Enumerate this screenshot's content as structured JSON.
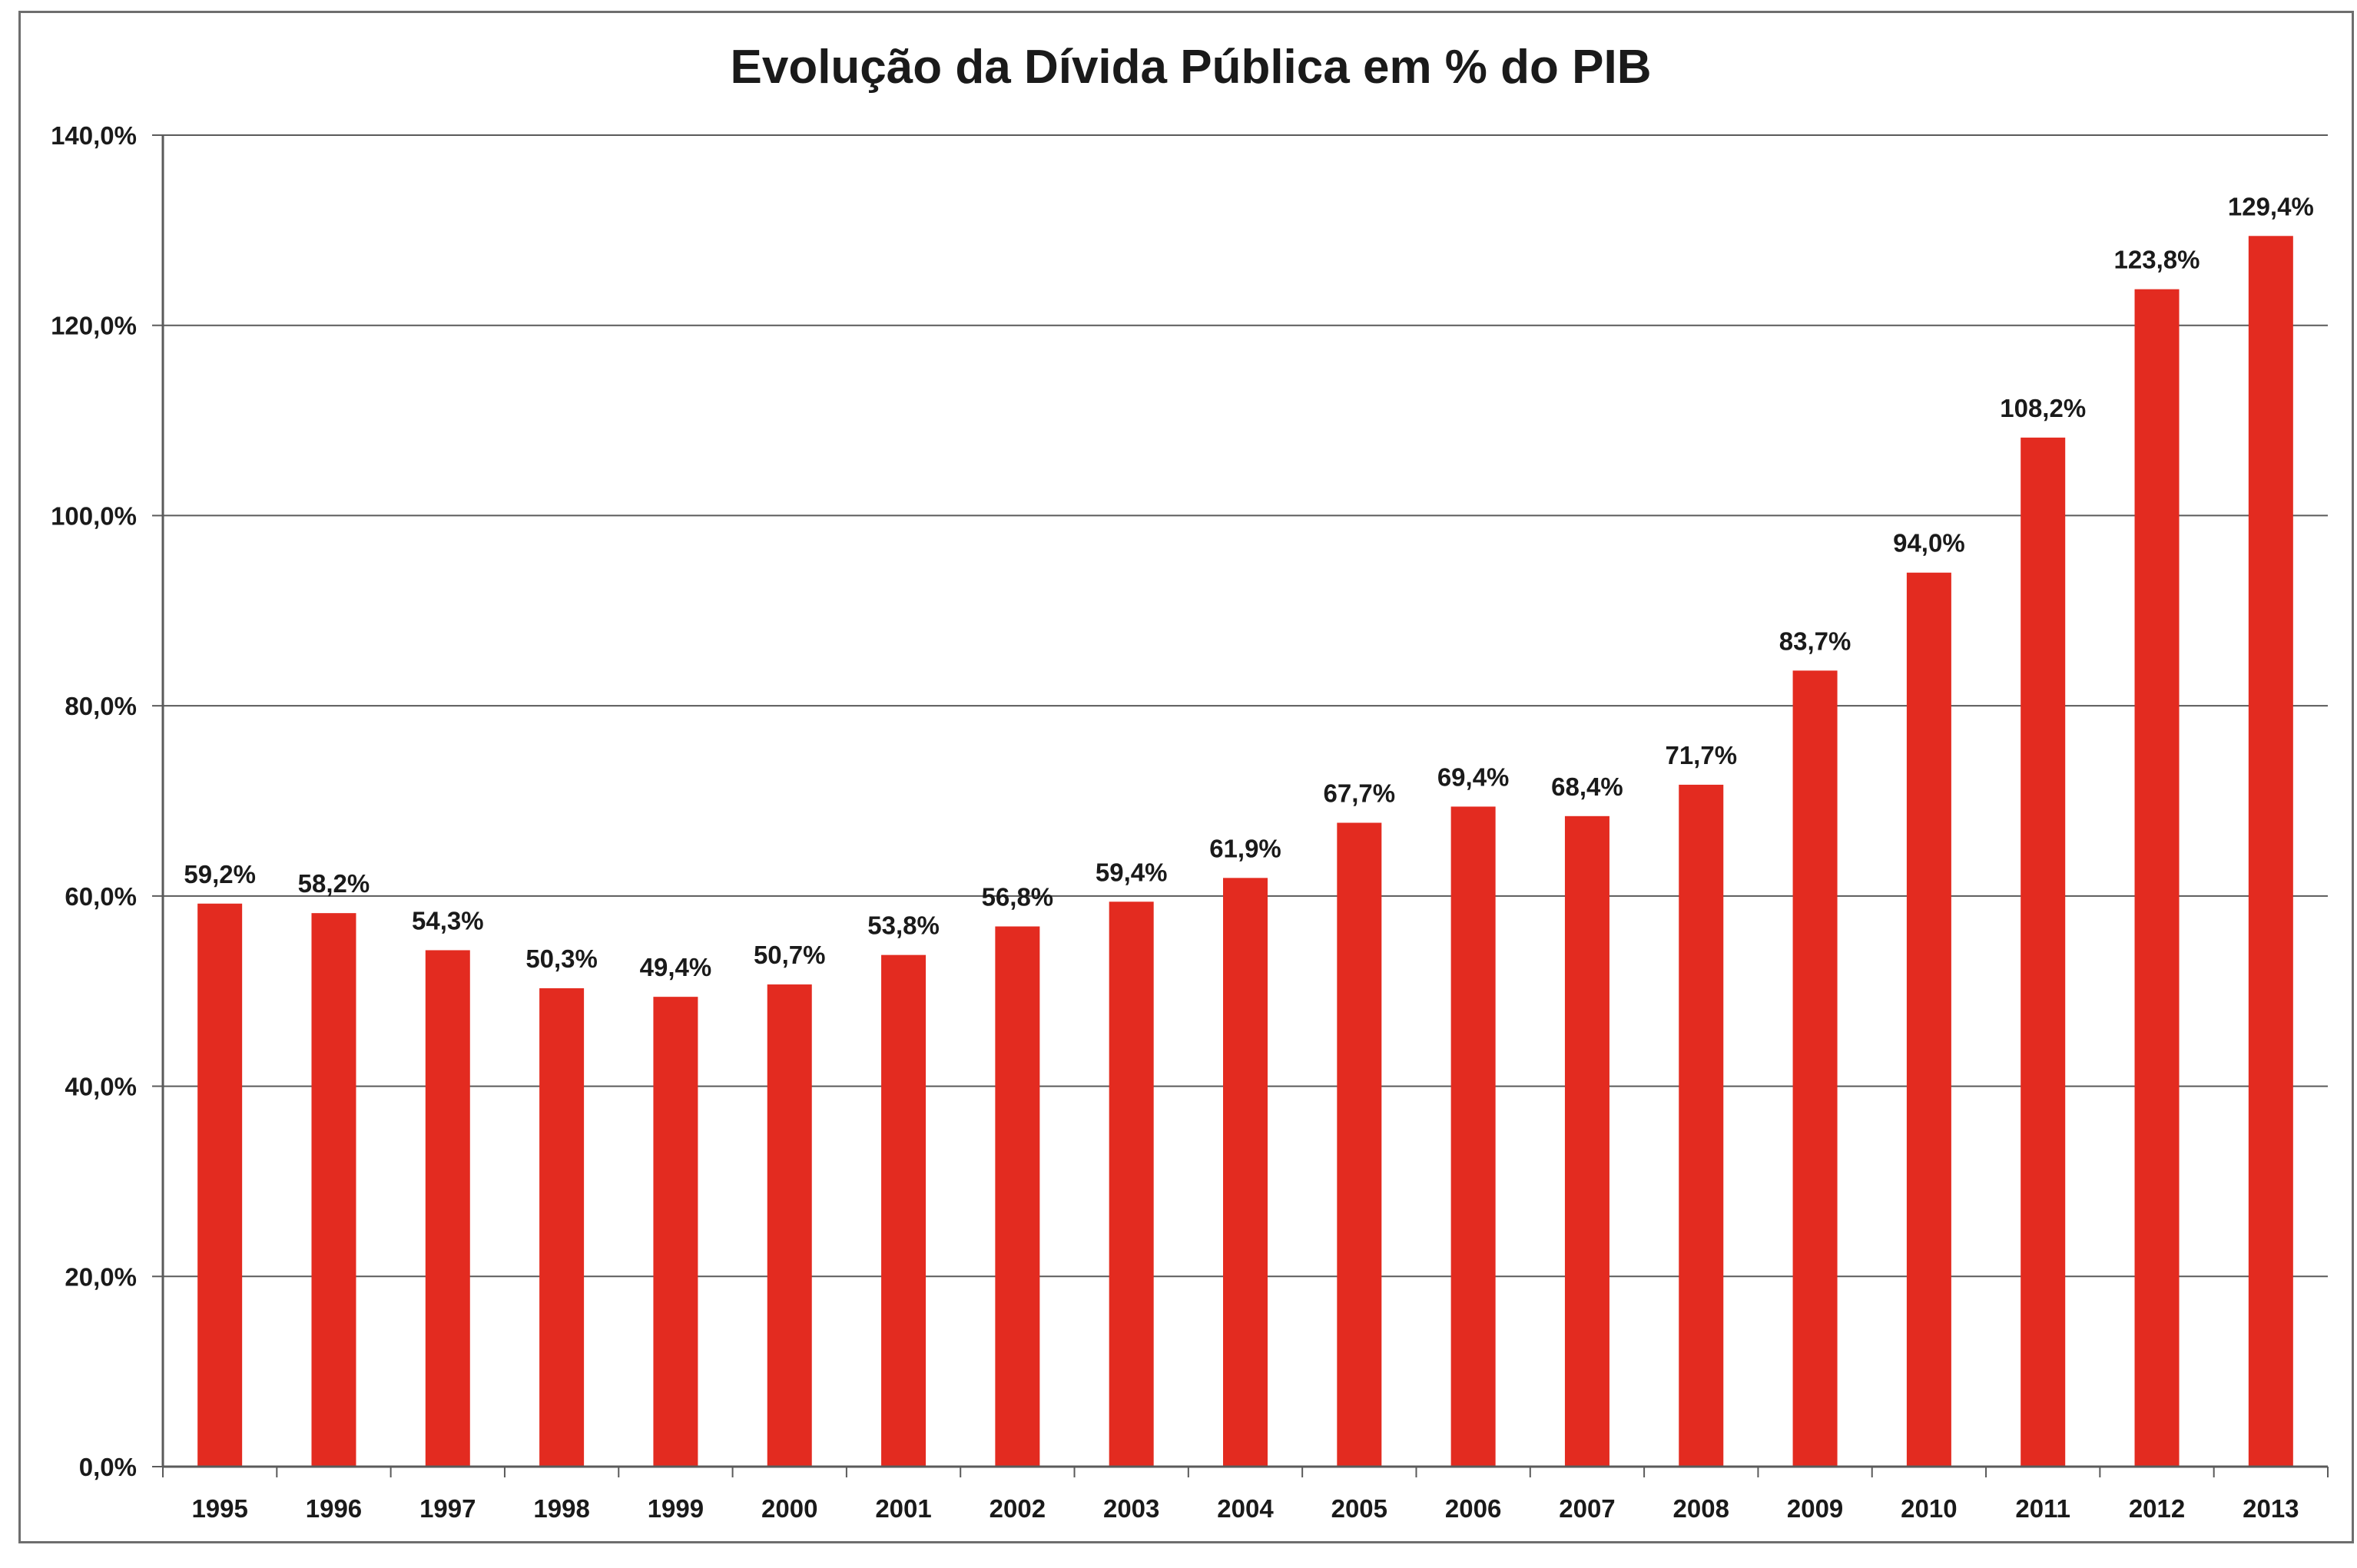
{
  "chart_data": {
    "type": "bar",
    "title": "Evolução da Dívida Pública em % do PIB",
    "xlabel": "",
    "ylabel": "",
    "categories": [
      "1995",
      "1996",
      "1997",
      "1998",
      "1999",
      "2000",
      "2001",
      "2002",
      "2003",
      "2004",
      "2005",
      "2006",
      "2007",
      "2008",
      "2009",
      "2010",
      "2011",
      "2012",
      "2013"
    ],
    "values": [
      59.2,
      58.2,
      54.3,
      50.3,
      49.4,
      50.7,
      53.8,
      56.8,
      59.4,
      61.9,
      67.7,
      69.4,
      68.4,
      71.7,
      83.7,
      94.0,
      108.2,
      123.8,
      129.4
    ],
    "value_labels": [
      "59,2%",
      "58,2%",
      "54,3%",
      "50,3%",
      "49,4%",
      "50,7%",
      "53,8%",
      "56,8%",
      "59,4%",
      "61,9%",
      "67,7%",
      "69,4%",
      "68,4%",
      "71,7%",
      "83,7%",
      "94,0%",
      "108,2%",
      "123,8%",
      "129,4%"
    ],
    "ylim": [
      0,
      140
    ],
    "yticks": [
      0,
      20,
      40,
      60,
      80,
      100,
      120,
      140
    ],
    "ytick_labels": [
      "0,0%",
      "20,0%",
      "40,0%",
      "60,0%",
      "80,0%",
      "100,0%",
      "120,0%",
      "140,0%"
    ],
    "grid": true,
    "legend": "none",
    "colors": {
      "bar": "#e32b20",
      "gridline": "#5a5a5a",
      "axis": "#5a5a5a",
      "text": "#1a1a1a",
      "frame": "#6e6e6e"
    }
  }
}
